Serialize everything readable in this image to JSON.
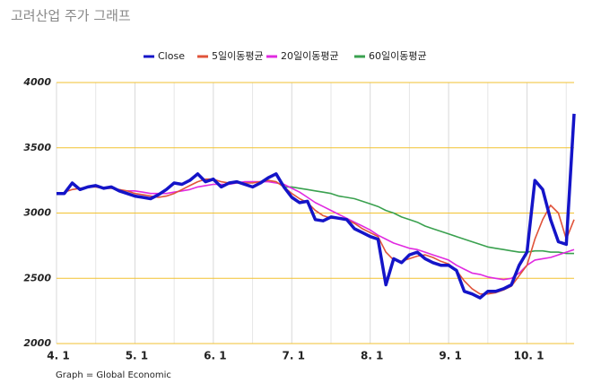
{
  "chart_data": {
    "type": "line",
    "title": "고려산업 주가 그래프",
    "footnote": "Graph = Global Economic",
    "categories": [
      "4. 1",
      null,
      null,
      null,
      null,
      null,
      null,
      null,
      null,
      null,
      "5. 1",
      null,
      null,
      null,
      null,
      null,
      null,
      null,
      null,
      null,
      "6. 1",
      null,
      null,
      null,
      null,
      null,
      null,
      null,
      null,
      null,
      "7. 1",
      null,
      null,
      null,
      null,
      null,
      null,
      null,
      null,
      null,
      "8. 1",
      null,
      null,
      null,
      null,
      null,
      null,
      null,
      null,
      null,
      "9. 1",
      null,
      null,
      null,
      null,
      null,
      null,
      null,
      null,
      null,
      "10. 1",
      null,
      null,
      null,
      null,
      null,
      null
    ],
    "series": [
      {
        "name": "Close",
        "color": "#1414c8",
        "values": [
          3150,
          3150,
          3230,
          3180,
          3200,
          3210,
          3190,
          3200,
          3170,
          3150,
          3130,
          3120,
          3110,
          3140,
          3180,
          3230,
          3220,
          3250,
          3300,
          3240,
          3260,
          3200,
          3230,
          3240,
          3220,
          3200,
          3230,
          3270,
          3300,
          3200,
          3120,
          3080,
          3090,
          2950,
          2940,
          2970,
          2960,
          2950,
          2880,
          2850,
          2820,
          2800,
          2450,
          2650,
          2620,
          2680,
          2700,
          2650,
          2620,
          2600,
          2600,
          2560,
          2400,
          2380,
          2350,
          2400,
          2400,
          2420,
          2450,
          2600,
          2700,
          3250,
          3180,
          2950,
          2780,
          2760,
          3760
        ]
      },
      {
        "name": "5일이동평균",
        "color": "#e0533a",
        "values": [
          null,
          3160,
          3180,
          3190,
          3200,
          3200,
          3190,
          3190,
          3180,
          3170,
          3150,
          3140,
          3130,
          3120,
          3130,
          3150,
          3180,
          3210,
          3240,
          3260,
          3260,
          3240,
          3230,
          3230,
          3230,
          3230,
          3240,
          3250,
          3240,
          3200,
          3150,
          3110,
          3080,
          3020,
          2980,
          2960,
          2960,
          2950,
          2920,
          2880,
          2850,
          2820,
          2700,
          2640,
          2630,
          2650,
          2670,
          2680,
          2660,
          2630,
          2610,
          2560,
          2480,
          2420,
          2380,
          2380,
          2390,
          2410,
          2440,
          2520,
          2600,
          2800,
          2950,
          3060,
          3000,
          2800,
          2950
        ]
      },
      {
        "name": "20일이동평균",
        "color": "#e02ae0",
        "values": [
          null,
          null,
          null,
          null,
          null,
          null,
          null,
          null,
          null,
          3170,
          3170,
          3160,
          3150,
          3150,
          3150,
          3160,
          3170,
          3180,
          3200,
          3210,
          3220,
          3220,
          3220,
          3230,
          3240,
          3240,
          3240,
          3240,
          3230,
          3220,
          3190,
          3160,
          3120,
          3080,
          3050,
          3020,
          2990,
          2960,
          2930,
          2900,
          2870,
          2830,
          2800,
          2770,
          2750,
          2730,
          2720,
          2700,
          2680,
          2660,
          2640,
          2600,
          2570,
          2540,
          2530,
          2510,
          2500,
          2490,
          2500,
          2540,
          2600,
          2640,
          2650,
          2660,
          2680,
          2700,
          2720
        ]
      },
      {
        "name": "60일이동평균",
        "color": "#3aa14f",
        "values": [
          null,
          null,
          null,
          null,
          null,
          null,
          null,
          null,
          null,
          null,
          null,
          null,
          null,
          null,
          null,
          null,
          null,
          null,
          null,
          null,
          null,
          null,
          null,
          null,
          null,
          null,
          null,
          null,
          null,
          3200,
          3200,
          3190,
          3180,
          3170,
          3160,
          3150,
          3130,
          3120,
          3110,
          3090,
          3070,
          3050,
          3020,
          3000,
          2970,
          2950,
          2930,
          2900,
          2880,
          2860,
          2840,
          2820,
          2800,
          2780,
          2760,
          2740,
          2730,
          2720,
          2710,
          2700,
          2700,
          2710,
          2710,
          2700,
          2700,
          2690,
          2690
        ]
      }
    ],
    "ylim": [
      2000,
      4000
    ],
    "yticks": [
      2000,
      2500,
      3000,
      3500,
      4000
    ],
    "grid": true,
    "legend": "top"
  }
}
